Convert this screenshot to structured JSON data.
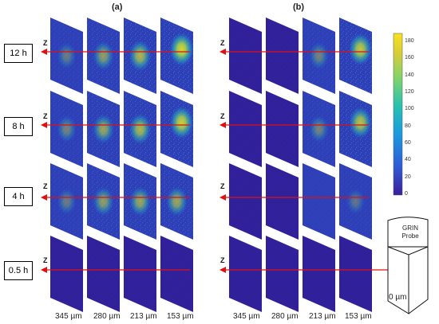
{
  "panels": [
    "(a)",
    "(b)"
  ],
  "time_labels": [
    "12 h",
    "8 h",
    "4 h",
    "0.5 h"
  ],
  "axis_label": "Z",
  "depths": [
    "345 µm",
    "280 µm",
    "213 µm",
    "153 µm"
  ],
  "colorbar": {
    "ticks": [
      "180",
      "160",
      "140",
      "120",
      "100",
      "80",
      "60",
      "40",
      "20",
      "0"
    ],
    "min": 0,
    "max": 190,
    "colors": [
      "#3b1f9e",
      "#2f5bd6",
      "#1a9be0",
      "#26c1b0",
      "#7fd36c",
      "#d9cd38",
      "#f9e21c"
    ]
  },
  "probe": {
    "line1": "GRIN",
    "line2": "Probe",
    "depth": "0 µm"
  },
  "intensity": {
    "a": [
      [
        0.35,
        0.55,
        0.7,
        0.9
      ],
      [
        0.4,
        0.6,
        0.7,
        0.85
      ],
      [
        0.35,
        0.55,
        0.6,
        0.6
      ],
      [
        0.05,
        0.08,
        0.06,
        0.04
      ]
    ],
    "b": [
      [
        0.04,
        0.1,
        0.4,
        0.8
      ],
      [
        0.04,
        0.1,
        0.4,
        0.75
      ],
      [
        0.04,
        0.05,
        0.15,
        0.3
      ],
      [
        0.02,
        0.02,
        0.02,
        0.02
      ]
    ]
  },
  "arrow_color": "#e01010"
}
